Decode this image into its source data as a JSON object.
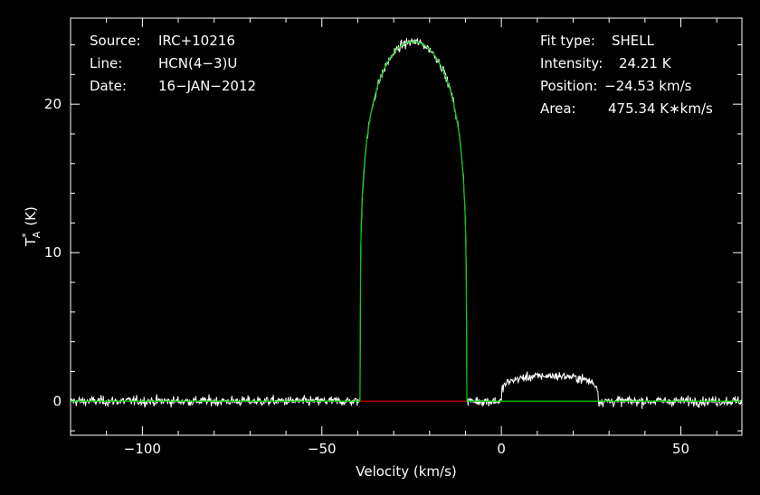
{
  "chart_data": {
    "type": "line",
    "xlabel": "Velocity (km/s)",
    "ylabel_main": "T",
    "ylabel_sup": "*",
    "ylabel_sub": "A",
    "ylabel_unit": "(K)",
    "xlim": [
      -120,
      67
    ],
    "ylim": [
      -2.3,
      25.8
    ],
    "x_ticks": [
      -100,
      -50,
      0,
      50
    ],
    "x_tick_labels": [
      "−100",
      "−50",
      "0",
      "50"
    ],
    "y_ticks": [
      0,
      10,
      20
    ],
    "y_tick_labels": [
      "0",
      "10",
      "20"
    ],
    "grid": false,
    "info_left": [
      {
        "key": "Source:",
        "value": "IRC+10216"
      },
      {
        "key": "Line:",
        "value": "HCN(4−3)U"
      },
      {
        "key": "Date:",
        "value": "16−JAN−2012"
      }
    ],
    "info_right": [
      {
        "key": "Fit type:",
        "value": "SHELL"
      },
      {
        "key": "Intensity:",
        "value": "24.21 K"
      },
      {
        "key": "Position:",
        "value": "−24.53 km/s"
      },
      {
        "key": "Area:",
        "value": "475.34 K∗km/s"
      }
    ],
    "spectrum": {
      "color": "#ffffff",
      "x_range": [
        -120,
        67
      ],
      "noise_rms": 0.3,
      "peaks": [
        {
          "center": -24.5,
          "half_width": 14.8,
          "height": 24.2
        },
        {
          "center": 13.5,
          "half_width": 13.5,
          "height": 1.7
        }
      ]
    },
    "fit": {
      "type": "SHELL",
      "color": "#00cc00",
      "intensity": 24.21,
      "position": -24.53,
      "half_width": 14.8,
      "horn_to_center": 0.0,
      "x_range": [
        -120,
        67
      ]
    },
    "baseline_window": {
      "color": "#cc0000",
      "x_range": [
        -40,
        -9
      ]
    }
  }
}
